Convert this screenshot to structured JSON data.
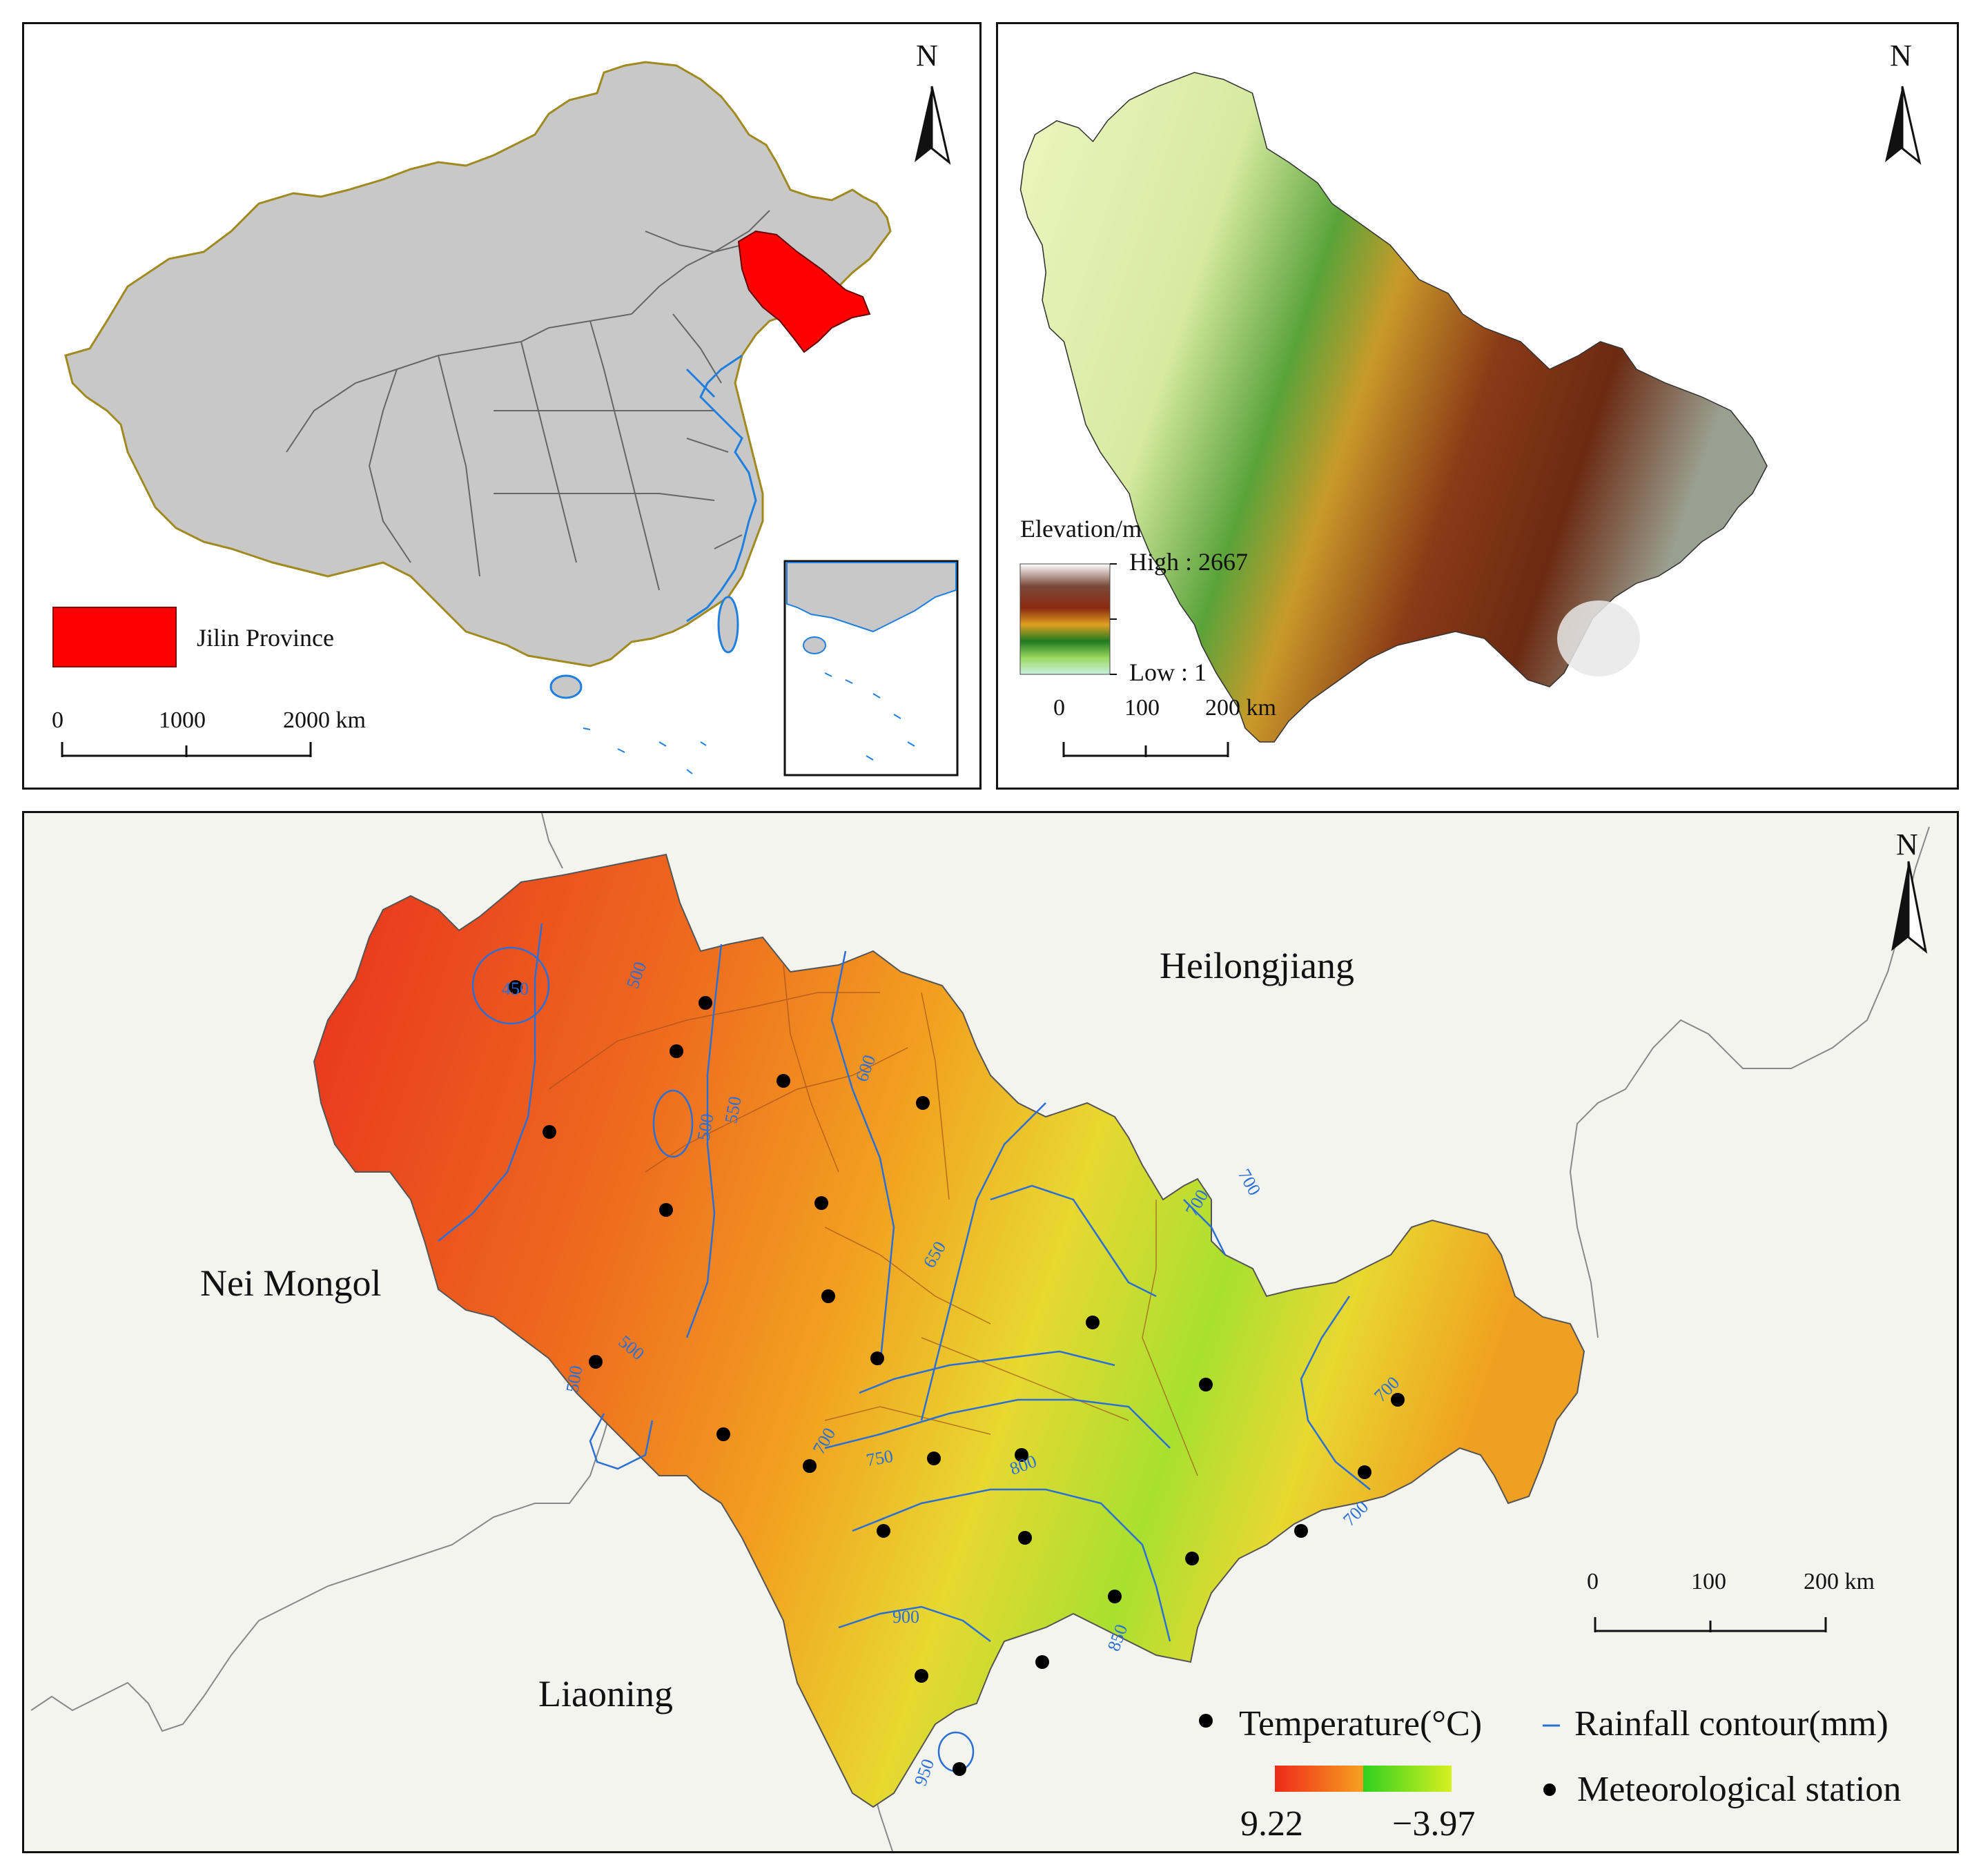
{
  "north_label": "N",
  "panel_china": {
    "legend_label": "Jilin Province",
    "legend_color": "#ff0000",
    "map_fill": "#c8c8c8",
    "border_color": "#a08a20",
    "coast_color": "#1e7fe0",
    "scale": [
      "0",
      "1000",
      "2000 km"
    ]
  },
  "panel_elevation": {
    "legend_title": "Elevation/m",
    "high_label": "High : 2667",
    "low_label": "Low : 1",
    "scale": [
      "0",
      "100",
      "200 km"
    ]
  },
  "panel_temperature": {
    "regions": {
      "heilongjiang": "Heilongjiang",
      "nei_mongol": "Nei Mongol",
      "liaoning": "Liaoning"
    },
    "contours": [
      "450",
      "500",
      "500",
      "500",
      "500",
      "550",
      "600",
      "650",
      "700",
      "700",
      "700",
      "700",
      "700",
      "750",
      "800",
      "850",
      "900",
      "950"
    ],
    "legend": {
      "temperature_title": "Temperature(°C)",
      "temp_max": "9.22",
      "temp_min": "−3.97",
      "rainfall_label": "Rainfall contour(mm)",
      "station_label": "Meteorological station"
    },
    "scale": [
      "0",
      "100",
      "200 km"
    ],
    "contour_color": "#2a6fd6"
  }
}
